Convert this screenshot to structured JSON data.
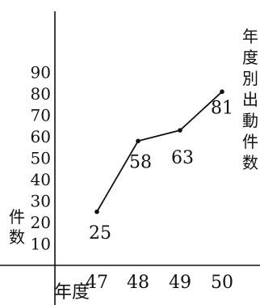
{
  "chart_data": {
    "type": "line",
    "x": [
      "47",
      "48",
      "49",
      "50"
    ],
    "series": [
      {
        "values": [
          25,
          58,
          63,
          81
        ]
      }
    ],
    "data_labels": [
      "25",
      "58",
      "63",
      "81"
    ],
    "y_ticks": [
      "10",
      "20",
      "30",
      "40",
      "50",
      "60",
      "70",
      "80",
      "90"
    ],
    "ylim": [
      0,
      90
    ],
    "xlabel": "年度",
    "ylabel": "件数",
    "series_label": "年度別出動件数",
    "grid": false,
    "line_color": "#111111"
  }
}
